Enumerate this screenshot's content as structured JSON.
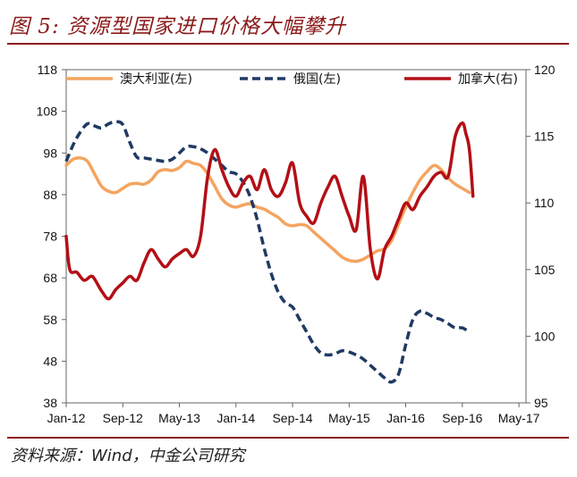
{
  "title": "图 5:  资源型国家进口价格大幅攀升",
  "source": "资料来源：Wind，中金公司研究",
  "chart_data": {
    "type": "line",
    "x_labels": [
      "Jan-12",
      "Sep-12",
      "May-13",
      "Jan-14",
      "Sep-14",
      "May-15",
      "Jan-16",
      "Sep-16",
      "May-17"
    ],
    "x_range": [
      0,
      65
    ],
    "y_left": {
      "ticks": [
        "118",
        "108",
        "98",
        "88",
        "78",
        "68",
        "58",
        "48",
        "38"
      ],
      "range": [
        38,
        118
      ]
    },
    "y_right": {
      "ticks": [
        "120",
        "115",
        "110",
        "105",
        "100",
        "95"
      ],
      "range": [
        95,
        120
      ]
    },
    "grid": false,
    "legend_position": "top",
    "series": [
      {
        "name": "澳大利亚(左)",
        "axis": "left",
        "color": "#f4a460",
        "style": "solid",
        "points": [
          [
            0,
            95
          ],
          [
            1,
            96.5
          ],
          [
            2,
            96.8
          ],
          [
            3,
            96
          ],
          [
            4,
            93
          ],
          [
            5,
            90
          ],
          [
            6,
            88.8
          ],
          [
            7,
            88.5
          ],
          [
            8,
            89.5
          ],
          [
            9,
            90.5
          ],
          [
            10,
            90.7
          ],
          [
            11,
            90.5
          ],
          [
            12,
            91.5
          ],
          [
            13,
            93.5
          ],
          [
            14,
            94
          ],
          [
            15,
            93.8
          ],
          [
            16,
            94.5
          ],
          [
            17,
            96
          ],
          [
            18,
            95.5
          ],
          [
            19,
            95
          ],
          [
            20,
            93
          ],
          [
            21,
            90
          ],
          [
            22,
            87
          ],
          [
            23,
            85.5
          ],
          [
            24,
            85
          ],
          [
            25,
            85.5
          ],
          [
            26,
            85.8
          ],
          [
            27,
            85
          ],
          [
            28,
            84.5
          ],
          [
            29,
            83.5
          ],
          [
            30,
            82.5
          ],
          [
            31,
            81
          ],
          [
            32,
            80.5
          ],
          [
            33,
            80.8
          ],
          [
            34,
            80.5
          ],
          [
            35,
            79
          ],
          [
            36,
            77.5
          ],
          [
            37,
            76
          ],
          [
            38,
            74.5
          ],
          [
            39,
            73
          ],
          [
            40,
            72.2
          ],
          [
            41,
            72
          ],
          [
            42,
            72.5
          ],
          [
            43,
            73.5
          ],
          [
            44,
            74.5
          ],
          [
            45,
            75
          ],
          [
            46,
            77
          ],
          [
            47,
            81
          ],
          [
            48,
            85
          ],
          [
            49,
            88.5
          ],
          [
            50,
            91.5
          ],
          [
            51,
            93.5
          ],
          [
            52,
            95
          ],
          [
            53,
            94
          ],
          [
            54,
            92
          ],
          [
            55,
            90.5
          ],
          [
            56,
            89.5
          ],
          [
            57,
            88.5
          ]
        ]
      },
      {
        "name": "俄国(左)",
        "axis": "left",
        "color": "#1f3a63",
        "style": "dashed",
        "points": [
          [
            0,
            96
          ],
          [
            1,
            100
          ],
          [
            2,
            103
          ],
          [
            3,
            105
          ],
          [
            4,
            104.5
          ],
          [
            5,
            104
          ],
          [
            6,
            105
          ],
          [
            7,
            105.5
          ],
          [
            8,
            104.8
          ],
          [
            9,
            100.5
          ],
          [
            10,
            97
          ],
          [
            11,
            96.8
          ],
          [
            12,
            96.5
          ],
          [
            13,
            96.2
          ],
          [
            14,
            96
          ],
          [
            15,
            96.5
          ],
          [
            16,
            98
          ],
          [
            17,
            99.5
          ],
          [
            18,
            99.5
          ],
          [
            19,
            99
          ],
          [
            20,
            98
          ],
          [
            21,
            96.5
          ],
          [
            22,
            95
          ],
          [
            23,
            93.5
          ],
          [
            24,
            93
          ],
          [
            25,
            91
          ],
          [
            26,
            87.5
          ],
          [
            27,
            82
          ],
          [
            28,
            75
          ],
          [
            29,
            69
          ],
          [
            30,
            64.5
          ],
          [
            31,
            62
          ],
          [
            32,
            61
          ],
          [
            33,
            58
          ],
          [
            34,
            55
          ],
          [
            35,
            52
          ],
          [
            36,
            50
          ],
          [
            37,
            49.5
          ],
          [
            38,
            49.8
          ],
          [
            39,
            50.5
          ],
          [
            40,
            50.2
          ],
          [
            41,
            49.5
          ],
          [
            42,
            48.5
          ],
          [
            43,
            47
          ],
          [
            44,
            45.5
          ],
          [
            45,
            44
          ],
          [
            46,
            43
          ],
          [
            47,
            45
          ],
          [
            48,
            52
          ],
          [
            49,
            58
          ],
          [
            50,
            60
          ],
          [
            51,
            59.5
          ],
          [
            52,
            58.5
          ],
          [
            53,
            58
          ],
          [
            54,
            57
          ],
          [
            55,
            56
          ],
          [
            56,
            56
          ],
          [
            57,
            55
          ]
        ]
      },
      {
        "name": "加拿大(右)",
        "axis": "right",
        "color": "#b30f16",
        "style": "solid",
        "points": [
          [
            0,
            107.5
          ],
          [
            0.5,
            105
          ],
          [
            1.5,
            104.8
          ],
          [
            2.5,
            104.2
          ],
          [
            3.5,
            104.5
          ],
          [
            4,
            104.3
          ],
          [
            5,
            103.4
          ],
          [
            6,
            102.8
          ],
          [
            7,
            103.5
          ],
          [
            8,
            104
          ],
          [
            9,
            104.5
          ],
          [
            10,
            104.2
          ],
          [
            11,
            105.5
          ],
          [
            12,
            106.5
          ],
          [
            13,
            105.8
          ],
          [
            14,
            105.2
          ],
          [
            15,
            105.8
          ],
          [
            16,
            106.2
          ],
          [
            17,
            106.5
          ],
          [
            18,
            106
          ],
          [
            19,
            107.5
          ],
          [
            20,
            112
          ],
          [
            21,
            114
          ],
          [
            22,
            112.5
          ],
          [
            23,
            111.2
          ],
          [
            24,
            110.5
          ],
          [
            25,
            111.5
          ],
          [
            26,
            112
          ],
          [
            27,
            111
          ],
          [
            28,
            112.5
          ],
          [
            29,
            111
          ],
          [
            30,
            110.5
          ],
          [
            31,
            111.5
          ],
          [
            32,
            113
          ],
          [
            33,
            110
          ],
          [
            34,
            109
          ],
          [
            35,
            108.5
          ],
          [
            36,
            110
          ],
          [
            37,
            111.2
          ],
          [
            38,
            112
          ],
          [
            39,
            110.5
          ],
          [
            40,
            109
          ],
          [
            41,
            108
          ],
          [
            42,
            112
          ],
          [
            43,
            106.5
          ],
          [
            44,
            104.3
          ],
          [
            45,
            106.5
          ],
          [
            46,
            107.5
          ],
          [
            47,
            108.8
          ],
          [
            48,
            110
          ],
          [
            49,
            109.5
          ],
          [
            50,
            110.5
          ],
          [
            51,
            111.2
          ],
          [
            52,
            112
          ],
          [
            53,
            112.3
          ],
          [
            54,
            112
          ],
          [
            55,
            115
          ],
          [
            56,
            116
          ],
          [
            56.5,
            115.2
          ],
          [
            57,
            114
          ],
          [
            57.5,
            110.5
          ]
        ]
      }
    ]
  }
}
